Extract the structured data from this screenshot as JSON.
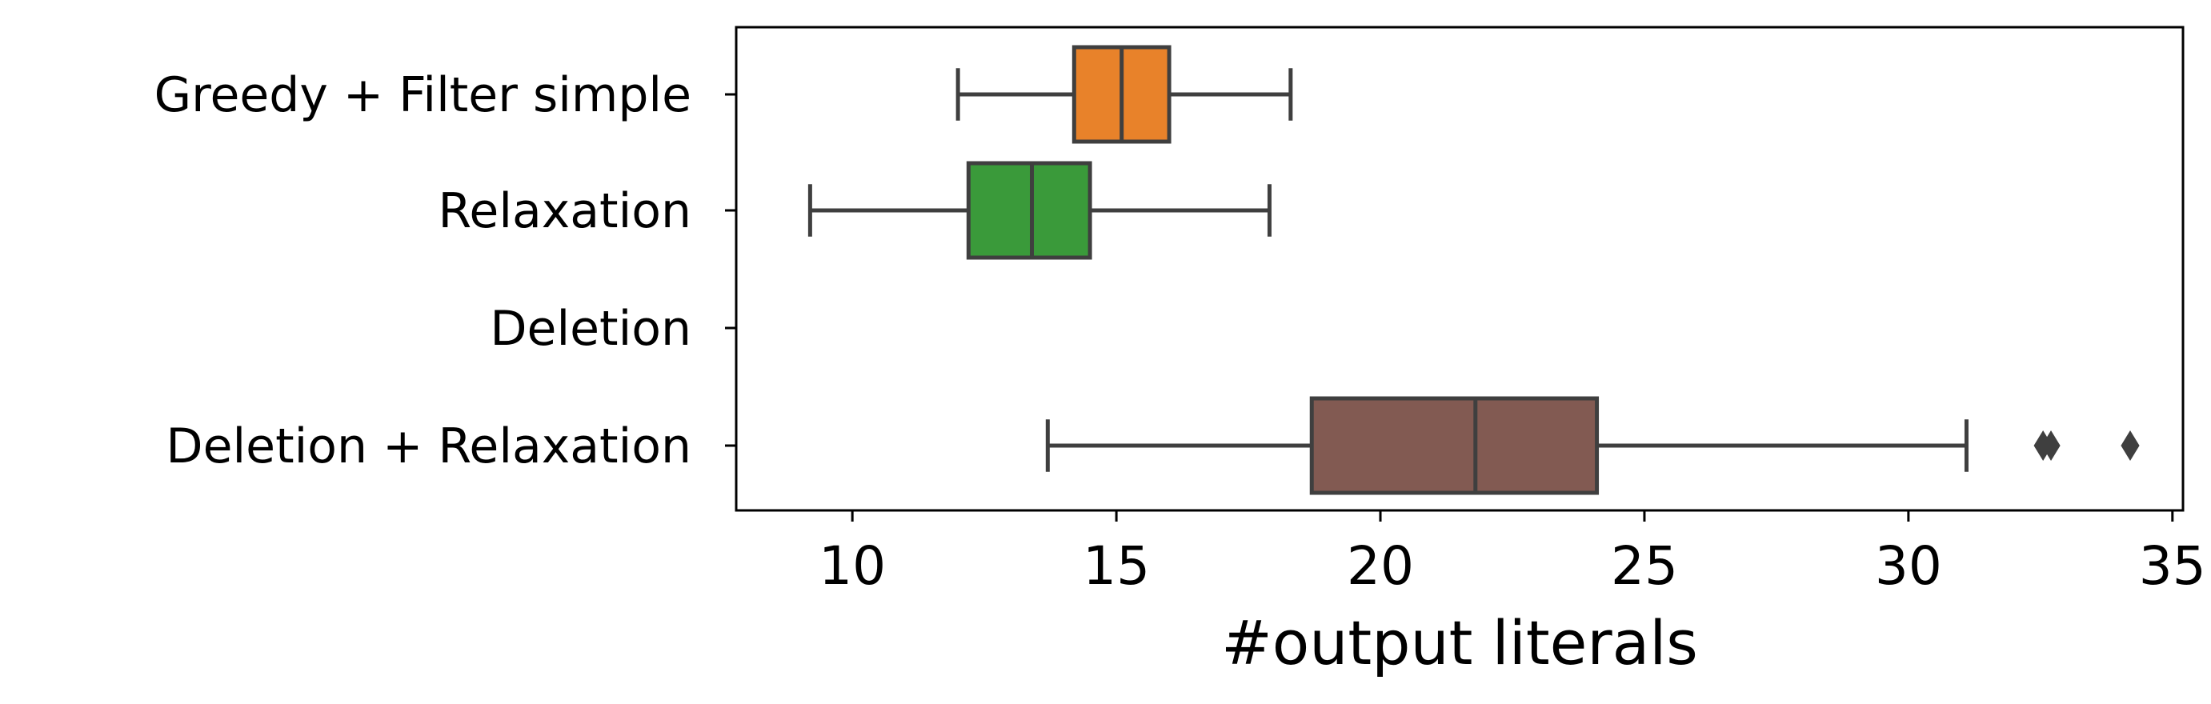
{
  "chart_data": {
    "type": "boxplot",
    "orientation": "horizontal",
    "title": "",
    "xlabel": "#output literals",
    "ylabel": "",
    "xlim": [
      7.8,
      35.2
    ],
    "xticks": [
      10,
      15,
      20,
      25,
      30,
      35
    ],
    "grid": false,
    "categories": [
      {
        "label": "Greedy + Filter simple",
        "color": "#E8822A",
        "whisker_low": 12.0,
        "q1": 14.2,
        "median": 15.1,
        "q3": 16.0,
        "whisker_high": 18.3,
        "outliers": []
      },
      {
        "label": "Relaxation",
        "color": "#3A9A3A",
        "whisker_low": 9.2,
        "q1": 12.2,
        "median": 13.4,
        "q3": 14.5,
        "whisker_high": 17.9,
        "outliers": []
      },
      {
        "label": "Deletion",
        "color": "#D62728",
        "whisker_low": null,
        "q1": null,
        "median": null,
        "q3": null,
        "whisker_high": null,
        "outliers": []
      },
      {
        "label": "Deletion + Relaxation",
        "color": "#825A52",
        "whisker_low": 13.7,
        "q1": 18.7,
        "median": 21.8,
        "q3": 24.1,
        "whisker_high": 31.1,
        "outliers": [
          32.55,
          32.7,
          34.2
        ]
      }
    ]
  }
}
